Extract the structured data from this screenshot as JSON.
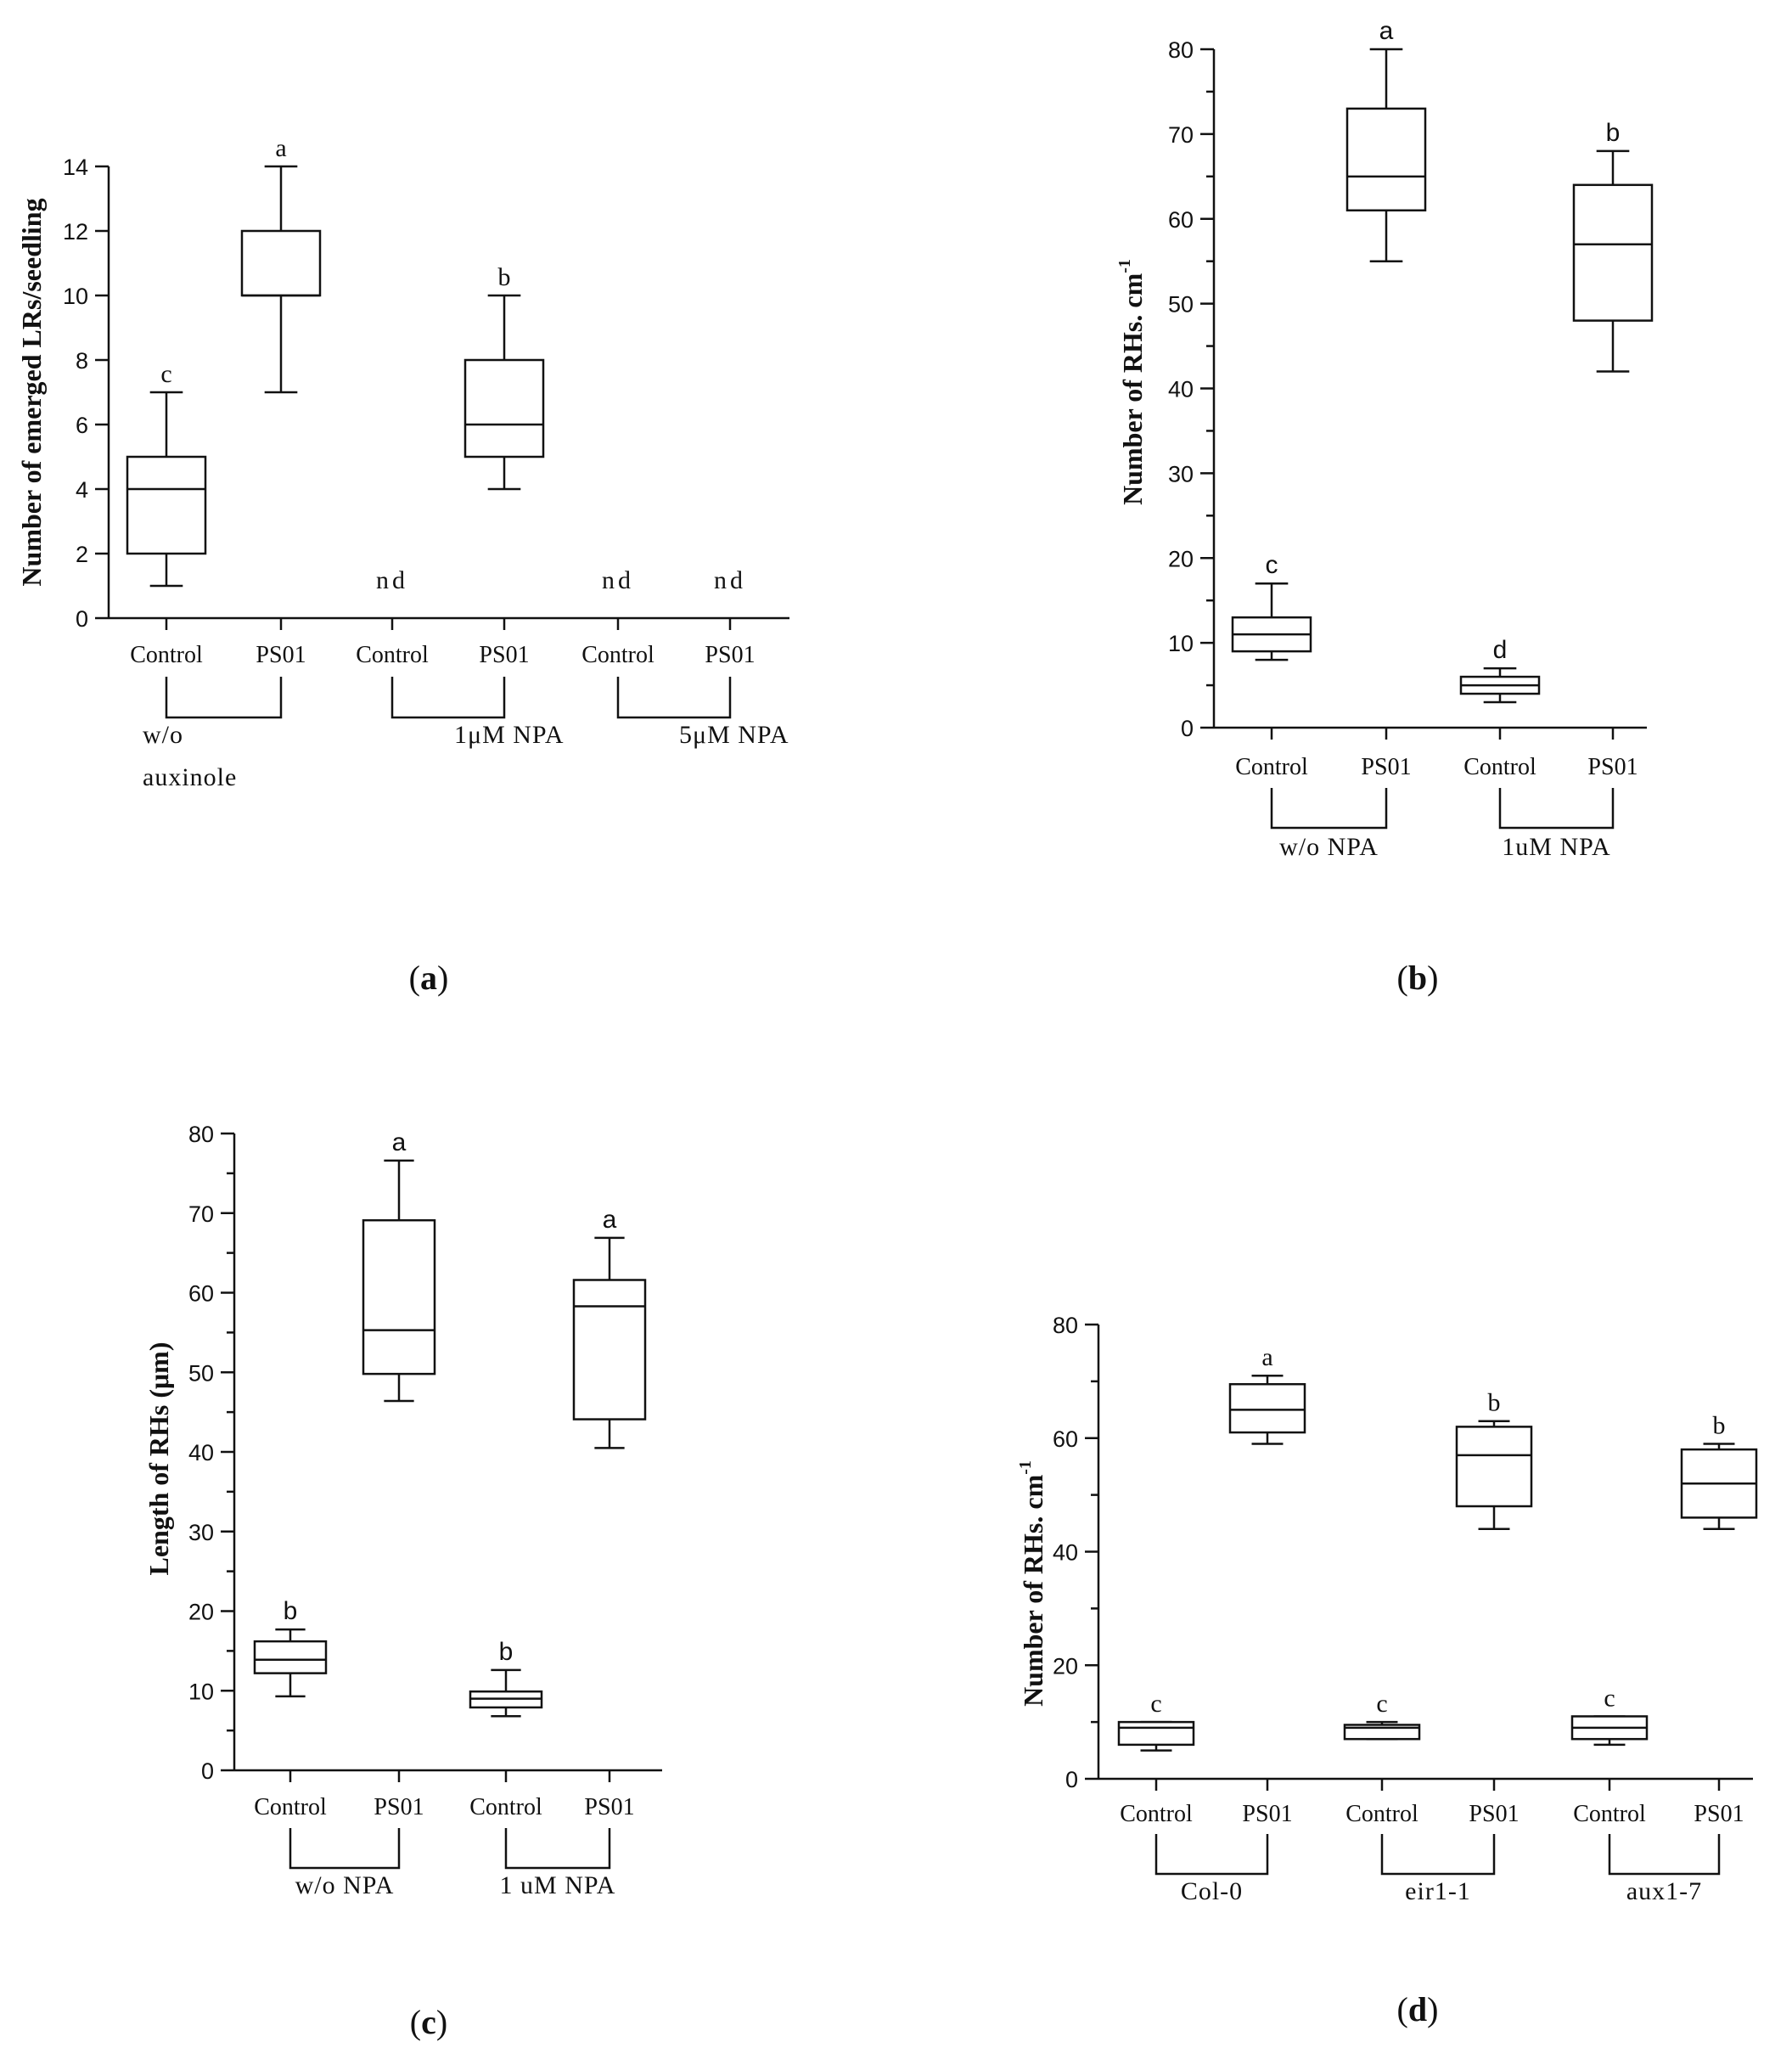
{
  "chart_data": [
    {
      "type": "box",
      "panel_label": "a",
      "ylabel": "Number of emerged LRs/seedling",
      "ylim": [
        0,
        14
      ],
      "yticks": [
        0,
        2,
        4,
        6,
        8,
        10,
        12,
        14
      ],
      "categories": [
        "Control",
        "PS01",
        "Control",
        "PS01",
        "Control",
        "PS01"
      ],
      "groups": [
        {
          "label": "w/o",
          "label2": "auxinole",
          "span": [
            0,
            1
          ]
        },
        {
          "label": "1μM NPA",
          "span": [
            2,
            3
          ]
        },
        {
          "label": "5μM NPA",
          "span": [
            4,
            5
          ]
        }
      ],
      "boxes": [
        {
          "category": 0,
          "min": 1,
          "q1": 2,
          "median": 4,
          "q3": 5,
          "max": 7,
          "letter": "c"
        },
        {
          "category": 1,
          "min": 7,
          "q1": 10,
          "median": 10,
          "q3": 12,
          "max": 14,
          "letter": "a"
        },
        {
          "category": 2,
          "nd": "nd"
        },
        {
          "category": 3,
          "min": 4,
          "q1": 5,
          "median": 6,
          "q3": 8,
          "max": 10,
          "letter": "b"
        },
        {
          "category": 4,
          "nd": "nd"
        },
        {
          "category": 5,
          "nd": "nd"
        }
      ]
    },
    {
      "type": "box",
      "panel_label": "b",
      "ylabel": "Number of RHs. cm",
      "ylabel_sup": "-1",
      "ylim": [
        0,
        80
      ],
      "yticks": [
        0,
        10,
        20,
        30,
        40,
        50,
        60,
        70,
        80
      ],
      "categories": [
        "Control",
        "PS01",
        "Control",
        "PS01"
      ],
      "groups": [
        {
          "label": "w/o NPA",
          "span": [
            0,
            1
          ]
        },
        {
          "label": "1uM NPA",
          "span": [
            2,
            3
          ]
        }
      ],
      "boxes": [
        {
          "category": 0,
          "min": 8,
          "q1": 9,
          "median": 11,
          "q3": 13,
          "max": 17,
          "letter": "c"
        },
        {
          "category": 1,
          "min": 55,
          "q1": 61,
          "median": 65,
          "q3": 73,
          "max": 80,
          "letter": "a"
        },
        {
          "category": 2,
          "min": 3,
          "q1": 4,
          "median": 5,
          "q3": 6,
          "max": 7,
          "letter": "d"
        },
        {
          "category": 3,
          "min": 42,
          "q1": 48,
          "median": 57,
          "q3": 64,
          "max": 68,
          "letter": "b"
        }
      ]
    },
    {
      "type": "box",
      "panel_label": "c",
      "ylabel": "Length of RHs (μm)",
      "ylim": [
        0,
        80
      ],
      "yticks": [
        0,
        10,
        20,
        30,
        40,
        50,
        60,
        70,
        80
      ],
      "categories": [
        "Control",
        "PS01",
        "Control",
        "PS01"
      ],
      "groups": [
        {
          "label": "w/o NPA",
          "span": [
            0,
            1
          ]
        },
        {
          "label": "1 uM NPA",
          "span": [
            2,
            3
          ]
        }
      ],
      "boxes": [
        {
          "category": 0,
          "min": 9.3,
          "q1": 12.2,
          "median": 13.9,
          "q3": 16.2,
          "max": 17.7,
          "letter": "b"
        },
        {
          "category": 1,
          "min": 46.4,
          "q1": 49.8,
          "median": 55.3,
          "q3": 69.1,
          "max": 76.6,
          "letter": "a"
        },
        {
          "category": 2,
          "min": 6.8,
          "q1": 7.9,
          "median": 9.0,
          "q3": 9.9,
          "max": 12.6,
          "letter": "b"
        },
        {
          "category": 3,
          "min": 40.5,
          "q1": 44.1,
          "median": 58.3,
          "q3": 61.6,
          "max": 66.9,
          "letter": "a"
        }
      ]
    },
    {
      "type": "box",
      "panel_label": "d",
      "ylabel": "Number of RHs. cm",
      "ylabel_sup": "-1",
      "ylim": [
        0,
        80
      ],
      "yticks": [
        0,
        20,
        40,
        60,
        80
      ],
      "categories": [
        "Control",
        "PS01",
        "Control",
        "PS01",
        "Control",
        "PS01"
      ],
      "groups": [
        {
          "label": "Col-0",
          "span": [
            0,
            1
          ]
        },
        {
          "label": "eir1-1",
          "span": [
            2,
            3
          ]
        },
        {
          "label": "aux1-7",
          "span": [
            4,
            5
          ]
        }
      ],
      "boxes": [
        {
          "category": 0,
          "min": 5,
          "q1": 6,
          "median": 9,
          "q3": 10,
          "max": 10,
          "letter": "c"
        },
        {
          "category": 1,
          "min": 59,
          "q1": 61,
          "median": 65,
          "q3": 69.5,
          "max": 71,
          "letter": "a"
        },
        {
          "category": 2,
          "min": 7,
          "q1": 7,
          "median": 9,
          "q3": 9.5,
          "max": 10,
          "letter": "c"
        },
        {
          "category": 3,
          "min": 44,
          "q1": 48,
          "median": 57,
          "q3": 62,
          "max": 63,
          "letter": "b"
        },
        {
          "category": 4,
          "min": 6,
          "q1": 7,
          "median": 9,
          "q3": 11,
          "max": 11,
          "letter": "c"
        },
        {
          "category": 5,
          "min": 44,
          "q1": 46,
          "median": 52,
          "q3": 58,
          "max": 59,
          "letter": "b"
        }
      ]
    }
  ]
}
